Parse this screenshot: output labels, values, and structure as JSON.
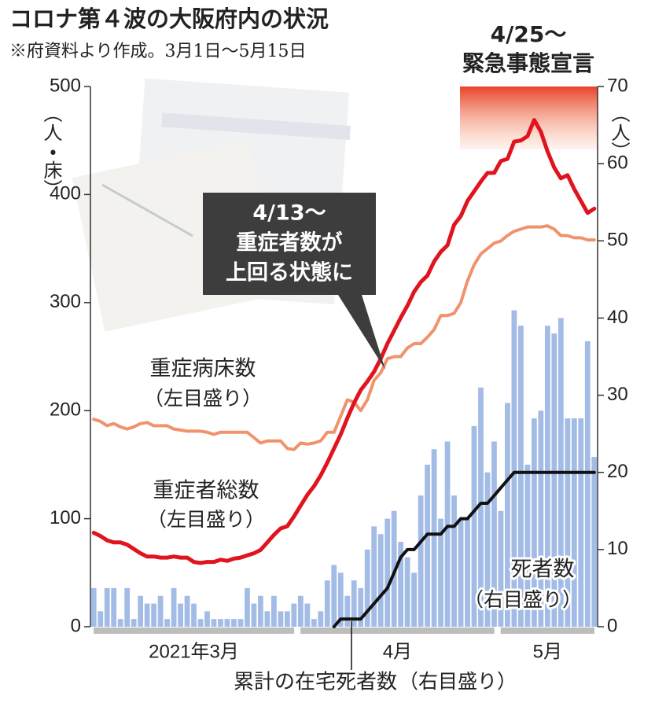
{
  "chart_data": {
    "type": "combo",
    "title": "コロナ第４波の大阪府内の状況",
    "subtitle": "※府資料より作成。3月1日～5月15日",
    "ylabel": "（人・床）",
    "y2label": "（人）",
    "xlim": [
      0,
      76
    ],
    "xticks": [
      {
        "value": 0,
        "label": "2021年3月"
      },
      {
        "value": 31,
        "label": "4月"
      },
      {
        "value": 61,
        "label": "5月"
      }
    ],
    "ylim": [
      0,
      500
    ],
    "yticks": [
      0,
      100,
      200,
      300,
      400,
      500
    ],
    "y2lim": [
      0,
      70
    ],
    "y2ticks": [
      0,
      10,
      20,
      30,
      40,
      50,
      60,
      70
    ],
    "emergency": [
      "4/25～",
      "緊急事態宣言"
    ],
    "callout": [
      "4/13～",
      "重症者数が",
      "上回る状態に"
    ],
    "series": [
      {
        "name": "死者数",
        "note": "（右目盛り）",
        "type": "bar",
        "axis": "y2",
        "color": "#a3bce6",
        "values": [
          5,
          2,
          5,
          5,
          1,
          5,
          1,
          4,
          3,
          3,
          4,
          1,
          5,
          3,
          4,
          3,
          1,
          2,
          1,
          1,
          1,
          1,
          1,
          5,
          3,
          4,
          2,
          4,
          2,
          2,
          3,
          4,
          3,
          1,
          2,
          6,
          8,
          7,
          4,
          6,
          5,
          10,
          13,
          12,
          14,
          15,
          11,
          9,
          7,
          17,
          21,
          23,
          14,
          24,
          17,
          14,
          14,
          26,
          31,
          20,
          24,
          15,
          29,
          41,
          39,
          21,
          27,
          28,
          39,
          38,
          40,
          27,
          27,
          27,
          37,
          22
        ]
      },
      {
        "name": "重症病床数",
        "note": "（左目盛り）",
        "type": "line",
        "axis": "y",
        "color": "#f0936c",
        "width": 4,
        "values": [
          192,
          190,
          186,
          188,
          185,
          183,
          185,
          188,
          189,
          186,
          186,
          186,
          183,
          182,
          181,
          181,
          181,
          180,
          178,
          180,
          180,
          180,
          180,
          180,
          175,
          170,
          172,
          172,
          172,
          165,
          164,
          170,
          169,
          170,
          172,
          180,
          180,
          195,
          210,
          208,
          200,
          210,
          228,
          235,
          248,
          250,
          250,
          258,
          262,
          262,
          268,
          275,
          288,
          288,
          290,
          300,
          320,
          335,
          345,
          350,
          355,
          357,
          362,
          366,
          368,
          370,
          370,
          370,
          371,
          368,
          362,
          362,
          360,
          360,
          358,
          358
        ]
      },
      {
        "name": "重症者総数",
        "note": "（左目盛り）",
        "type": "line",
        "axis": "y",
        "color": "#e0141e",
        "width": 5,
        "values": [
          87,
          84,
          80,
          78,
          78,
          76,
          72,
          68,
          65,
          65,
          64,
          64,
          65,
          64,
          64,
          60,
          59,
          60,
          60,
          62,
          61,
          63,
          64,
          66,
          68,
          71,
          78,
          85,
          91,
          93,
          102,
          112,
          122,
          130,
          140,
          152,
          165,
          178,
          193,
          207,
          219,
          227,
          236,
          248,
          262,
          274,
          286,
          297,
          310,
          319,
          325,
          338,
          347,
          353,
          372,
          380,
          394,
          403,
          412,
          420,
          420,
          431,
          433,
          449,
          450,
          454,
          469,
          458,
          440,
          425,
          415,
          418,
          405,
          394,
          383,
          387
        ]
      },
      {
        "name": "累計の在宅死者数",
        "note": "（右目盛り）",
        "type": "line",
        "axis": "y2",
        "color": "#111111",
        "width": 4,
        "values": [
          null,
          null,
          null,
          null,
          null,
          null,
          null,
          null,
          null,
          null,
          null,
          null,
          null,
          null,
          null,
          null,
          null,
          null,
          null,
          null,
          null,
          null,
          null,
          null,
          null,
          null,
          null,
          null,
          null,
          null,
          null,
          null,
          null,
          null,
          null,
          null,
          0,
          1,
          1,
          1,
          1,
          2,
          3,
          4,
          5,
          7,
          9,
          10,
          10,
          11,
          12,
          12,
          12,
          13,
          13,
          14,
          14,
          15,
          16,
          16,
          17,
          18,
          19,
          20,
          20,
          20,
          20,
          20,
          20,
          20,
          20,
          20,
          20,
          20,
          20,
          20
        ]
      }
    ]
  }
}
